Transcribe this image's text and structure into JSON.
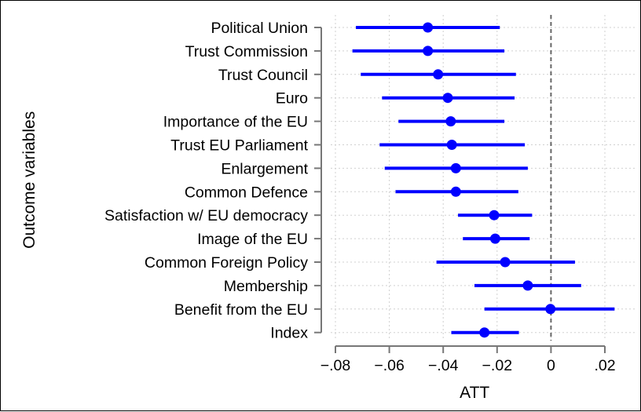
{
  "chart_data": {
    "type": "coefficient-plot",
    "xlabel": "ATT",
    "ylabel": "Outcome variables",
    "xlim": [
      -0.085,
      0.022
    ],
    "xticks": [
      -0.08,
      -0.06,
      -0.04,
      -0.02,
      0,
      0.02
    ],
    "xtick_labels": [
      "−.08",
      "−.06",
      "−.04",
      "−.02",
      "0",
      ".02"
    ],
    "reference_line": 0,
    "grid": true,
    "marker_color": "#0000ff",
    "items": [
      {
        "label": "Political Union",
        "estimate": -0.0457,
        "lower": -0.0724,
        "upper": -0.019
      },
      {
        "label": "Trust Commission",
        "estimate": -0.0457,
        "lower": -0.0737,
        "upper": -0.0173
      },
      {
        "label": "Trust Council",
        "estimate": -0.0419,
        "lower": -0.0706,
        "upper": -0.013
      },
      {
        "label": "Euro",
        "estimate": -0.0383,
        "lower": -0.0627,
        "upper": -0.0135
      },
      {
        "label": "Importance of the EU",
        "estimate": -0.0372,
        "lower": -0.0566,
        "upper": -0.0173
      },
      {
        "label": "Trust EU Parliament",
        "estimate": -0.0368,
        "lower": -0.0636,
        "upper": -0.0097
      },
      {
        "label": "Enlargement",
        "estimate": -0.0353,
        "lower": -0.0617,
        "upper": -0.0086
      },
      {
        "label": "Common Defence",
        "estimate": -0.0353,
        "lower": -0.0577,
        "upper": -0.0121
      },
      {
        "label": "Satisfaction w/ EU democracy",
        "estimate": -0.0211,
        "lower": -0.0345,
        "upper": -0.007
      },
      {
        "label": "Image of the EU",
        "estimate": -0.0207,
        "lower": -0.0327,
        "upper": -0.0079
      },
      {
        "label": "Common Foreign Policy",
        "estimate": -0.017,
        "lower": -0.0425,
        "upper": 0.0089
      },
      {
        "label": "Membership",
        "estimate": -0.0086,
        "lower": -0.0284,
        "upper": 0.0112
      },
      {
        "label": "Benefit from the EU",
        "estimate": -0.0002,
        "lower": -0.0247,
        "upper": 0.0236
      },
      {
        "label": "Index",
        "estimate": -0.0247,
        "lower": -0.037,
        "upper": -0.0119
      }
    ]
  }
}
